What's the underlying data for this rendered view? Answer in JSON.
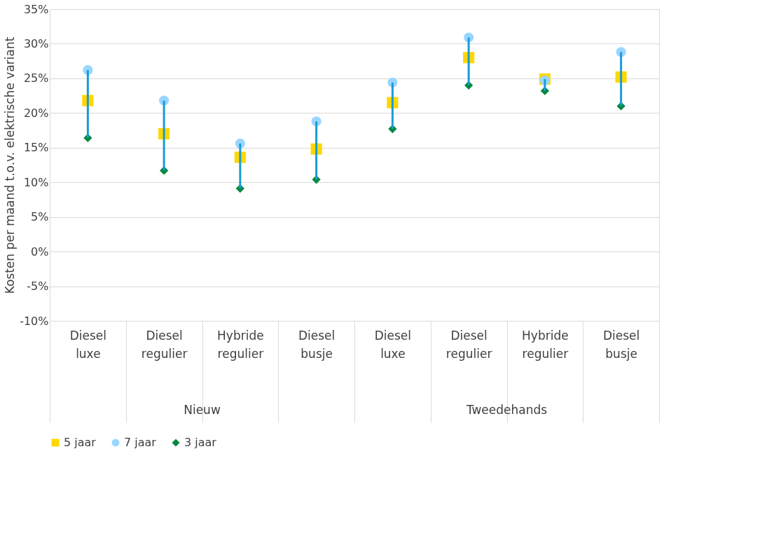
{
  "chart_data": {
    "type": "scatter",
    "ylabel": "Kosten per maand t.o.v. elektrische variant",
    "categories": [
      "Diesel luxe",
      "Diesel regulier",
      "Hybride regulier",
      "Diesel busje",
      "Diesel luxe",
      "Diesel regulier",
      "Hybride regulier",
      "Diesel busje"
    ],
    "series": [
      {
        "type": "bar",
        "color": "#1a9bd7",
        "base": [
          16.4,
          11.7,
          9.1,
          10.4,
          17.7,
          24.0,
          23.2,
          21.0
        ],
        "values": [
          9.8,
          10.1,
          6.5,
          8.4,
          6.7,
          6.9,
          1.7,
          7.8
        ]
      },
      {
        "name": "5 jaar",
        "color": "#ffd700",
        "marker": "square",
        "values": [
          21.8,
          17.0,
          13.6,
          14.8,
          21.5,
          28.0,
          24.9,
          25.2
        ]
      },
      {
        "name": "7 jaar",
        "color": "#99d6ff",
        "marker": "circle",
        "values": [
          26.2,
          21.8,
          15.6,
          18.8,
          24.4,
          30.9,
          24.7,
          28.8
        ]
      },
      {
        "name": "3 jaar",
        "color": "#00893c",
        "marker": "diamond",
        "values": [
          16.4,
          11.7,
          9.1,
          10.4,
          17.7,
          24.0,
          23.2,
          21.0
        ]
      }
    ],
    "ylim": [
      -10,
      35
    ],
    "yticks": [
      {
        "value": -10,
        "label": "-10%"
      },
      {
        "value": -5,
        "label": "-5%"
      },
      {
        "value": 0,
        "label": "0%"
      },
      {
        "value": 5,
        "label": "5%"
      },
      {
        "value": 10,
        "label": "10%"
      },
      {
        "value": 15,
        "label": "15%"
      },
      {
        "value": 20,
        "label": "20%"
      },
      {
        "value": 25,
        "label": "25%"
      },
      {
        "value": 30,
        "label": "30%"
      },
      {
        "value": 35,
        "label": "35%"
      }
    ],
    "annotations": [
      "Nieuw",
      "Tweedehands"
    ],
    "grid": "y",
    "legend": "bottom"
  }
}
